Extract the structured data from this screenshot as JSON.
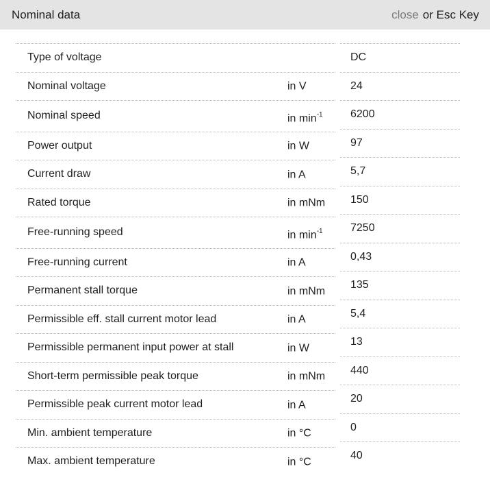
{
  "header": {
    "title": "Nominal data",
    "close_label": "close",
    "close_suffix": "or Esc Key"
  },
  "colors": {
    "header_bg": "#e4e4e4",
    "text": "#1f1f1f",
    "muted": "#7d7d7d",
    "divider": "#b3b3b3",
    "page_bg": "#ffffff"
  },
  "table": {
    "rows": [
      {
        "label": "Type of voltage",
        "unit": "",
        "unit_sup": "",
        "value": "DC"
      },
      {
        "label": "Nominal voltage",
        "unit": "in V",
        "unit_sup": "",
        "value": "24"
      },
      {
        "label": "Nominal speed",
        "unit": "in min",
        "unit_sup": "-1",
        "value": "6200"
      },
      {
        "label": "Power output",
        "unit": "in W",
        "unit_sup": "",
        "value": "97"
      },
      {
        "label": "Current draw",
        "unit": "in A",
        "unit_sup": "",
        "value": "5,7"
      },
      {
        "label": "Rated torque",
        "unit": "in mNm",
        "unit_sup": "",
        "value": "150"
      },
      {
        "label": "Free-running speed",
        "unit": "in min",
        "unit_sup": "-1",
        "value": "7250"
      },
      {
        "label": "Free-running current",
        "unit": "in A",
        "unit_sup": "",
        "value": "0,43"
      },
      {
        "label": "Permanent stall torque",
        "unit": "in mNm",
        "unit_sup": "",
        "value": "135"
      },
      {
        "label": "Permissible eff. stall current motor lead",
        "unit": "in A",
        "unit_sup": "",
        "value": "5,4"
      },
      {
        "label": "Permissible permanent input power at stall",
        "unit": "in W",
        "unit_sup": "",
        "value": "13"
      },
      {
        "label": "Short-term permissible peak torque",
        "unit": "in mNm",
        "unit_sup": "",
        "value": "440"
      },
      {
        "label": "Permissible peak current motor lead",
        "unit": "in A",
        "unit_sup": "",
        "value": "20"
      },
      {
        "label": "Min. ambient temperature",
        "unit": "in °C",
        "unit_sup": "",
        "value": "0"
      },
      {
        "label": "Max. ambient temperature",
        "unit": "in °C",
        "unit_sup": "",
        "value": "40"
      }
    ]
  }
}
